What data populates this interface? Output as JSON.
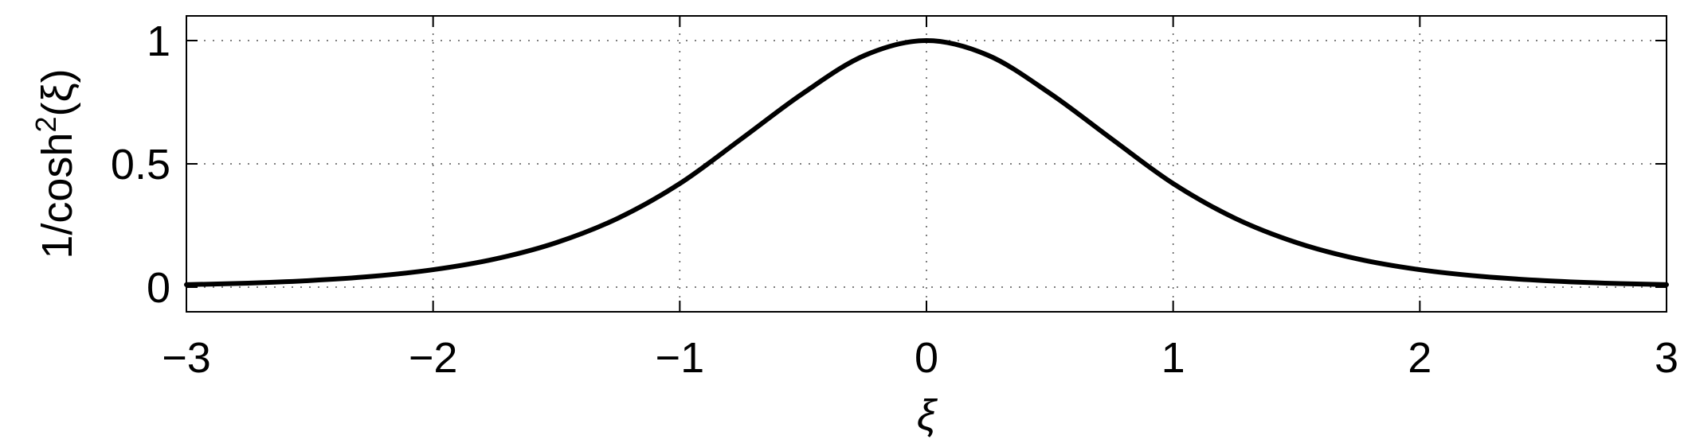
{
  "chart_data": {
    "type": "line",
    "title": "",
    "xlabel": "ξ",
    "ylabel_prefix": "1/cosh",
    "ylabel_sup": "2",
    "ylabel_suffix": "(ξ)",
    "xlim": [
      -3,
      3
    ],
    "ylim": [
      -0.1,
      1.1
    ],
    "xticks": [
      -3,
      -2,
      -1,
      0,
      1,
      2,
      3
    ],
    "xtick_labels": [
      "−3",
      "−2",
      "−1",
      "0",
      "1",
      "2",
      "3"
    ],
    "yticks": [
      0,
      0.5,
      1
    ],
    "ytick_labels": [
      "0",
      "0.5",
      "1"
    ],
    "grid": true,
    "grid_style": "dotted",
    "legend": "none",
    "series": [
      {
        "function": "1/cosh^2(x)",
        "color": "#000000",
        "x": [
          -3,
          -2.75,
          -2.5,
          -2.25,
          -2,
          -1.75,
          -1.5,
          -1.25,
          -1,
          -0.75,
          -0.5,
          -0.25,
          0,
          0.25,
          0.5,
          0.75,
          1,
          1.25,
          1.5,
          1.75,
          2,
          2.25,
          2.5,
          2.75,
          3
        ],
        "y": [
          0.0099,
          0.0163,
          0.0266,
          0.0434,
          0.0707,
          0.1139,
          0.1807,
          0.2797,
          0.42,
          0.6016,
          0.7864,
          0.9401,
          1,
          0.9401,
          0.7864,
          0.6016,
          0.42,
          0.2797,
          0.1807,
          0.1139,
          0.0707,
          0.0434,
          0.0266,
          0.0163,
          0.0099
        ]
      }
    ]
  }
}
